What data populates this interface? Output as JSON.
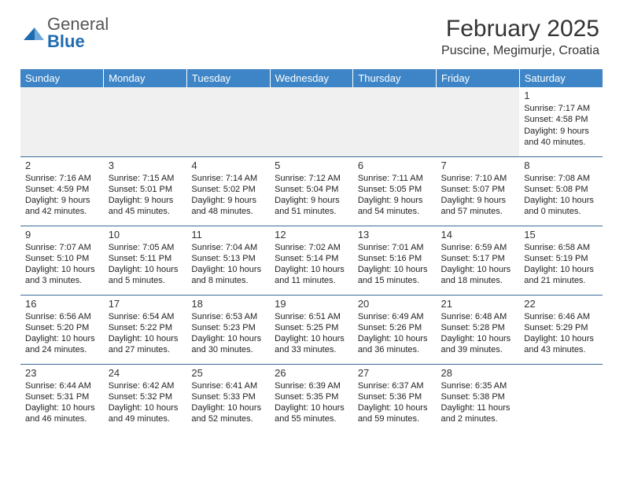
{
  "logo": {
    "text1": "General",
    "text2": "Blue"
  },
  "title": "February 2025",
  "location": "Puscine, Megimurje, Croatia",
  "colors": {
    "header_bg": "#3d85c6",
    "header_fg": "#ffffff",
    "rule": "#3d6b99",
    "logo_gray": "#555555",
    "logo_blue": "#1f6bb0",
    "text": "#222222",
    "empty_bg": "#f0f0f0"
  },
  "typography": {
    "title_fontsize": 30,
    "location_fontsize": 16,
    "dayheader_fontsize": 13,
    "daynum_fontsize": 13,
    "details_fontsize": 11
  },
  "columns": [
    "Sunday",
    "Monday",
    "Tuesday",
    "Wednesday",
    "Thursday",
    "Friday",
    "Saturday"
  ],
  "weeks": [
    [
      null,
      null,
      null,
      null,
      null,
      null,
      {
        "n": "1",
        "sr": "7:17 AM",
        "ss": "4:58 PM",
        "dl": "9 hours and 40 minutes."
      }
    ],
    [
      {
        "n": "2",
        "sr": "7:16 AM",
        "ss": "4:59 PM",
        "dl": "9 hours and 42 minutes."
      },
      {
        "n": "3",
        "sr": "7:15 AM",
        "ss": "5:01 PM",
        "dl": "9 hours and 45 minutes."
      },
      {
        "n": "4",
        "sr": "7:14 AM",
        "ss": "5:02 PM",
        "dl": "9 hours and 48 minutes."
      },
      {
        "n": "5",
        "sr": "7:12 AM",
        "ss": "5:04 PM",
        "dl": "9 hours and 51 minutes."
      },
      {
        "n": "6",
        "sr": "7:11 AM",
        "ss": "5:05 PM",
        "dl": "9 hours and 54 minutes."
      },
      {
        "n": "7",
        "sr": "7:10 AM",
        "ss": "5:07 PM",
        "dl": "9 hours and 57 minutes."
      },
      {
        "n": "8",
        "sr": "7:08 AM",
        "ss": "5:08 PM",
        "dl": "10 hours and 0 minutes."
      }
    ],
    [
      {
        "n": "9",
        "sr": "7:07 AM",
        "ss": "5:10 PM",
        "dl": "10 hours and 3 minutes."
      },
      {
        "n": "10",
        "sr": "7:05 AM",
        "ss": "5:11 PM",
        "dl": "10 hours and 5 minutes."
      },
      {
        "n": "11",
        "sr": "7:04 AM",
        "ss": "5:13 PM",
        "dl": "10 hours and 8 minutes."
      },
      {
        "n": "12",
        "sr": "7:02 AM",
        "ss": "5:14 PM",
        "dl": "10 hours and 11 minutes."
      },
      {
        "n": "13",
        "sr": "7:01 AM",
        "ss": "5:16 PM",
        "dl": "10 hours and 15 minutes."
      },
      {
        "n": "14",
        "sr": "6:59 AM",
        "ss": "5:17 PM",
        "dl": "10 hours and 18 minutes."
      },
      {
        "n": "15",
        "sr": "6:58 AM",
        "ss": "5:19 PM",
        "dl": "10 hours and 21 minutes."
      }
    ],
    [
      {
        "n": "16",
        "sr": "6:56 AM",
        "ss": "5:20 PM",
        "dl": "10 hours and 24 minutes."
      },
      {
        "n": "17",
        "sr": "6:54 AM",
        "ss": "5:22 PM",
        "dl": "10 hours and 27 minutes."
      },
      {
        "n": "18",
        "sr": "6:53 AM",
        "ss": "5:23 PM",
        "dl": "10 hours and 30 minutes."
      },
      {
        "n": "19",
        "sr": "6:51 AM",
        "ss": "5:25 PM",
        "dl": "10 hours and 33 minutes."
      },
      {
        "n": "20",
        "sr": "6:49 AM",
        "ss": "5:26 PM",
        "dl": "10 hours and 36 minutes."
      },
      {
        "n": "21",
        "sr": "6:48 AM",
        "ss": "5:28 PM",
        "dl": "10 hours and 39 minutes."
      },
      {
        "n": "22",
        "sr": "6:46 AM",
        "ss": "5:29 PM",
        "dl": "10 hours and 43 minutes."
      }
    ],
    [
      {
        "n": "23",
        "sr": "6:44 AM",
        "ss": "5:31 PM",
        "dl": "10 hours and 46 minutes."
      },
      {
        "n": "24",
        "sr": "6:42 AM",
        "ss": "5:32 PM",
        "dl": "10 hours and 49 minutes."
      },
      {
        "n": "25",
        "sr": "6:41 AM",
        "ss": "5:33 PM",
        "dl": "10 hours and 52 minutes."
      },
      {
        "n": "26",
        "sr": "6:39 AM",
        "ss": "5:35 PM",
        "dl": "10 hours and 55 minutes."
      },
      {
        "n": "27",
        "sr": "6:37 AM",
        "ss": "5:36 PM",
        "dl": "10 hours and 59 minutes."
      },
      {
        "n": "28",
        "sr": "6:35 AM",
        "ss": "5:38 PM",
        "dl": "11 hours and 2 minutes."
      },
      null
    ]
  ],
  "labels": {
    "sunrise": "Sunrise:",
    "sunset": "Sunset:",
    "daylight": "Daylight:"
  }
}
